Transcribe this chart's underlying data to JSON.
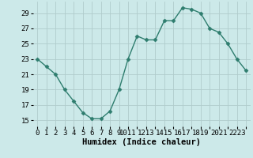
{
  "x": [
    0,
    1,
    2,
    3,
    4,
    5,
    6,
    7,
    8,
    9,
    10,
    11,
    12,
    13,
    14,
    15,
    16,
    17,
    18,
    19,
    20,
    21,
    22,
    23
  ],
  "y": [
    23,
    22,
    21,
    19,
    17.5,
    16,
    15.2,
    15.2,
    16.2,
    19,
    23,
    26,
    25.5,
    25.5,
    28,
    28,
    29.7,
    29.5,
    29,
    27,
    26.5,
    25,
    23,
    21.5
  ],
  "line_color": "#2e7d6e",
  "marker": "D",
  "marker_size": 2.5,
  "bg_color": "#cce9e9",
  "grid_color": "#b0cccc",
  "xlabel": "Humidex (Indice chaleur)",
  "xlabel_fontsize": 7.5,
  "yticks": [
    15,
    17,
    19,
    21,
    23,
    25,
    27,
    29
  ],
  "xtick_labels": [
    "0",
    "1",
    "2",
    "3",
    "4",
    "5",
    "6",
    "7",
    "8",
    "9",
    "1011",
    "1213",
    "1415",
    "1617",
    "1819",
    "2021",
    "2223"
  ],
  "ylim": [
    14.2,
    30.5
  ],
  "xlim": [
    -0.5,
    23.5
  ],
  "tick_fontsize": 6.5,
  "line_width": 1.0
}
